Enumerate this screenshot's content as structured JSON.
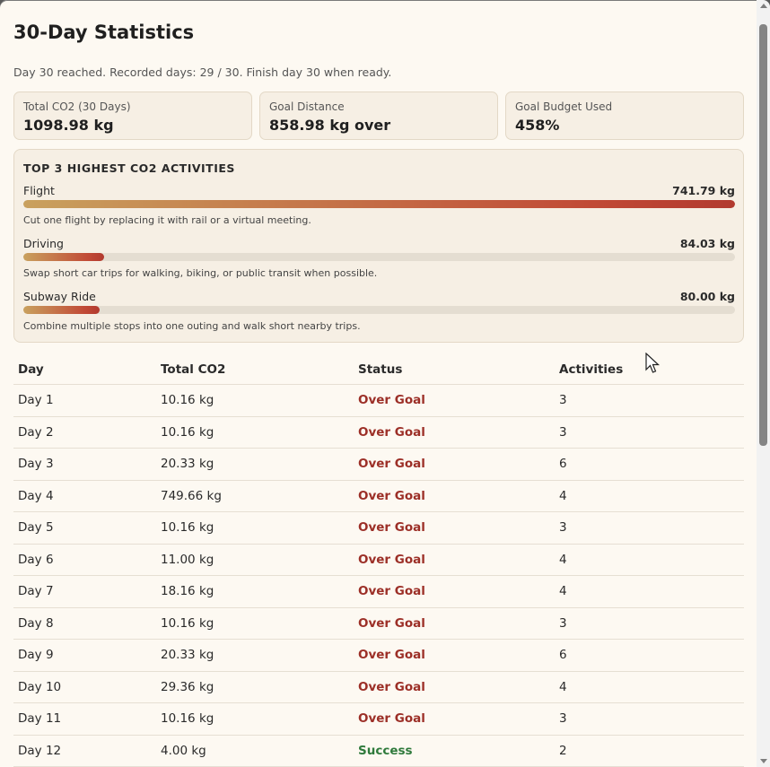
{
  "header": {
    "title": "30-Day Statistics",
    "subtitle": "Day 30 reached. Recorded days: 29 / 30. Finish day 30 when ready."
  },
  "summary_cards": [
    {
      "label": "Total CO2 (30 Days)",
      "value": "1098.98 kg"
    },
    {
      "label": "Goal Distance",
      "value": "858.98 kg over"
    },
    {
      "label": "Goal Budget Used",
      "value": "458%"
    }
  ],
  "top_activities": {
    "heading": "TOP 3 HIGHEST CO2 ACTIVITIES",
    "items": [
      {
        "name": "Flight",
        "amount": "741.79 kg",
        "fraction": 1.0,
        "tip": "Cut one flight by replacing it with rail or a virtual meeting."
      },
      {
        "name": "Driving",
        "amount": "84.03 kg",
        "fraction": 0.1133,
        "tip": "Swap short car trips for walking, biking, or public transit when possible."
      },
      {
        "name": "Subway Ride",
        "amount": "80.00 kg",
        "fraction": 0.1078,
        "tip": "Combine multiple stops into one outing and walk short nearby trips."
      }
    ]
  },
  "table": {
    "headers": [
      "Day",
      "Total CO2",
      "Status",
      "Activities"
    ],
    "rows": [
      {
        "day": "Day 1",
        "co2": "10.16 kg",
        "status": "Over Goal",
        "activities": "3"
      },
      {
        "day": "Day 2",
        "co2": "10.16 kg",
        "status": "Over Goal",
        "activities": "3"
      },
      {
        "day": "Day 3",
        "co2": "20.33 kg",
        "status": "Over Goal",
        "activities": "6"
      },
      {
        "day": "Day 4",
        "co2": "749.66 kg",
        "status": "Over Goal",
        "activities": "4"
      },
      {
        "day": "Day 5",
        "co2": "10.16 kg",
        "status": "Over Goal",
        "activities": "3"
      },
      {
        "day": "Day 6",
        "co2": "11.00 kg",
        "status": "Over Goal",
        "activities": "4"
      },
      {
        "day": "Day 7",
        "co2": "18.16 kg",
        "status": "Over Goal",
        "activities": "4"
      },
      {
        "day": "Day 8",
        "co2": "10.16 kg",
        "status": "Over Goal",
        "activities": "3"
      },
      {
        "day": "Day 9",
        "co2": "20.33 kg",
        "status": "Over Goal",
        "activities": "6"
      },
      {
        "day": "Day 10",
        "co2": "29.36 kg",
        "status": "Over Goal",
        "activities": "4"
      },
      {
        "day": "Day 11",
        "co2": "10.16 kg",
        "status": "Over Goal",
        "activities": "3"
      },
      {
        "day": "Day 12",
        "co2": "4.00 kg",
        "status": "Success",
        "activities": "2"
      }
    ]
  },
  "colors": {
    "over_goal": "#9c2f27",
    "success": "#2f7a3c",
    "bar_start": "#c9a15e",
    "bar_end": "#b23a2f"
  }
}
